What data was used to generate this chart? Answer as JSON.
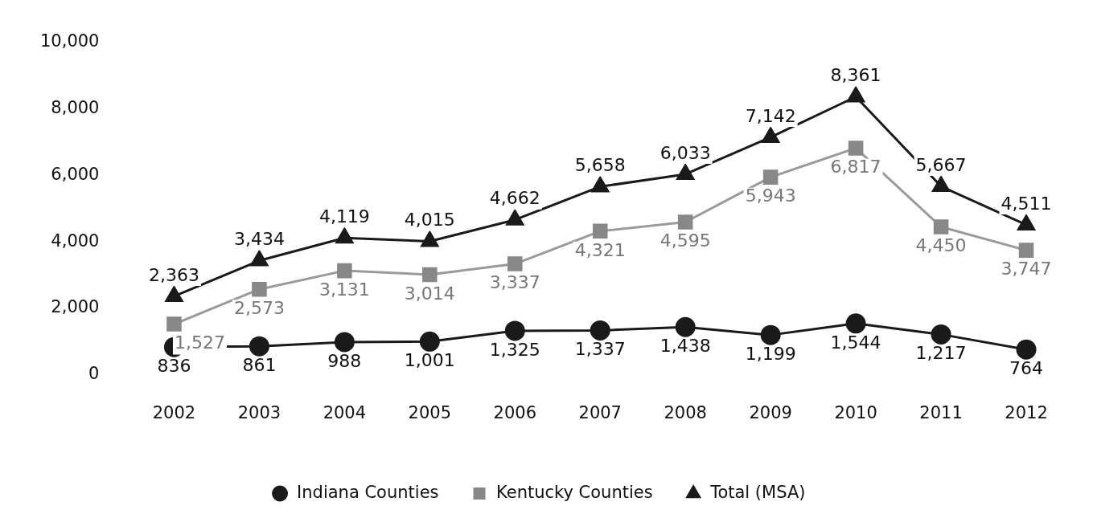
{
  "chart_data": {
    "type": "line",
    "categories": [
      "2002",
      "2003",
      "2004",
      "2005",
      "2006",
      "2007",
      "2008",
      "2009",
      "2010",
      "2011",
      "2012"
    ],
    "series": [
      {
        "name": "Indiana Counties",
        "color": "#1a1a1a",
        "marker": "circle",
        "values": [
          836,
          861,
          988,
          1001,
          1325,
          1337,
          1438,
          1199,
          1544,
          1217,
          764
        ],
        "value_labels": [
          "836",
          "861",
          "988",
          "1,001",
          "1,325",
          "1,337",
          "1,438",
          "1,199",
          "1,544",
          "1,217",
          "764"
        ]
      },
      {
        "name": "Kentucky Counties",
        "color": "#888888",
        "marker": "square",
        "values": [
          1527,
          2573,
          3131,
          3014,
          3337,
          4321,
          4595,
          5943,
          6817,
          4450,
          3747
        ],
        "value_labels": [
          "1,527",
          "2,573",
          "3,131",
          "3,014",
          "3,337",
          "4,321",
          "4,595",
          "5,943",
          "6,817",
          "4,450",
          "3,747"
        ]
      },
      {
        "name": "Total (MSA)",
        "color": "#1a1a1a",
        "marker": "triangle",
        "values": [
          2363,
          3434,
          4119,
          4015,
          4662,
          5658,
          6033,
          7142,
          8361,
          5667,
          4511
        ],
        "value_labels": [
          "2,363",
          "3,434",
          "4,119",
          "4,015",
          "4,662",
          "5,658",
          "6,033",
          "7,142",
          "8,361",
          "5,667",
          "4,511"
        ]
      }
    ],
    "ylim": [
      0,
      10000
    ],
    "yticks": [
      0,
      {
        "value": 2000,
        "label": "2,000"
      },
      {
        "value": 4000,
        "label": "4,000"
      },
      {
        "value": 6000,
        "label": "6,000"
      },
      {
        "value": 8000,
        "label": "8,000"
      },
      {
        "value": 10000,
        "label": "10,000"
      }
    ],
    "grid": false,
    "legend": "bottom",
    "line_style": "solid"
  }
}
